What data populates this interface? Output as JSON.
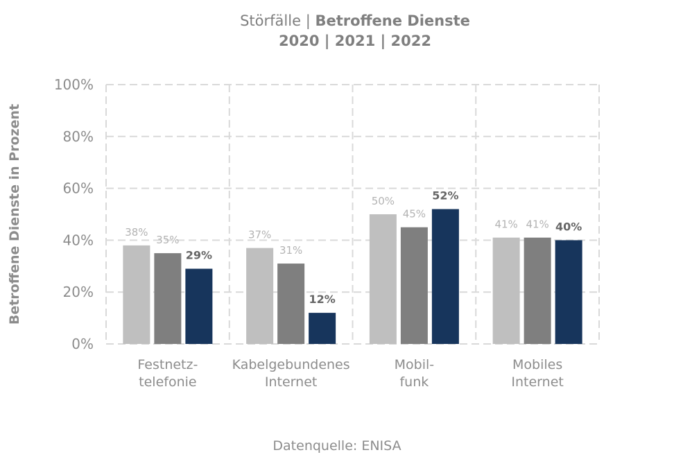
{
  "title": {
    "prefix": "Störfälle",
    "separator": "|",
    "emphasis": "Betroffene Dienste",
    "years_line": "2020 | 2021 | 2022"
  },
  "source_note": "Datenquelle: ENISA",
  "colors": {
    "2020": "#bfbfbf",
    "2021": "#7f7f7f",
    "2022": "#17355c",
    "grid": "#d9d9d9",
    "text": "#8c8c8c",
    "label_emph": "#666666"
  },
  "chart_data": {
    "type": "bar",
    "categories": [
      [
        "Festnetz-",
        "telefonie"
      ],
      [
        "Kabelgebundenes",
        "Internet"
      ],
      [
        "Mobil-",
        "funk"
      ],
      [
        "Mobiles",
        "Internet"
      ]
    ],
    "series": [
      {
        "values": [
          38,
          37,
          50,
          41
        ],
        "labels": [
          "38%",
          "37%",
          "50%",
          "41%"
        ]
      },
      {
        "values": [
          35,
          31,
          45,
          41
        ],
        "labels": [
          "35%",
          "31%",
          "45%",
          "41%"
        ]
      },
      {
        "values": [
          29,
          12,
          52,
          40
        ],
        "labels": [
          "29%",
          "12%",
          "52%",
          "40%"
        ]
      }
    ],
    "title": "Störfälle | Betroffene Dienste 2020 | 2021 | 2022",
    "ylabel": "Betroffene Dienste in Prozent",
    "xlabel": "",
    "ylim": [
      0,
      100
    ],
    "yticks": [
      "0%",
      "20%",
      "40%",
      "60%",
      "80%",
      "100%"
    ],
    "grid": true,
    "grid_style": "dashed",
    "legend": "none"
  }
}
